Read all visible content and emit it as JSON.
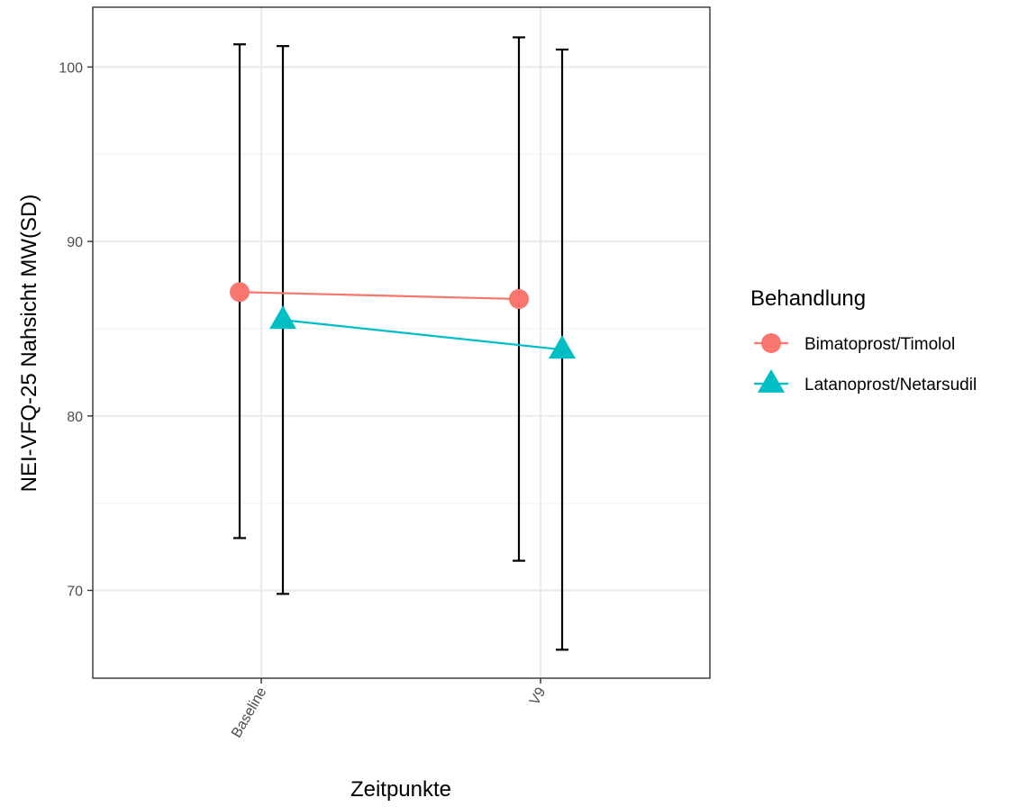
{
  "chart_data": {
    "type": "line",
    "xlabel": "Zeitpunkte",
    "ylabel": "NEI-VFQ-25 Nahsicht MW(SD)",
    "categories": [
      "Baseline",
      "V9"
    ],
    "ylim": [
      64.9,
      103.4
    ],
    "yticks": [
      70,
      80,
      90,
      100
    ],
    "grid": true,
    "legend": {
      "title": "Behandlung",
      "position": "right"
    },
    "series": [
      {
        "name": "Bimatoprost/Timolol",
        "color": "#F8766D",
        "marker": "circle",
        "mean": [
          87.1,
          86.7
        ],
        "error_low": [
          73.0,
          71.7
        ],
        "error_high": [
          101.3,
          101.7
        ]
      },
      {
        "name": "Latanoprost/Netarsudil",
        "color": "#00BFC4",
        "marker": "triangle",
        "mean": [
          85.5,
          83.8
        ],
        "error_low": [
          69.8,
          66.6
        ],
        "error_high": [
          101.2,
          101.0
        ]
      }
    ]
  }
}
